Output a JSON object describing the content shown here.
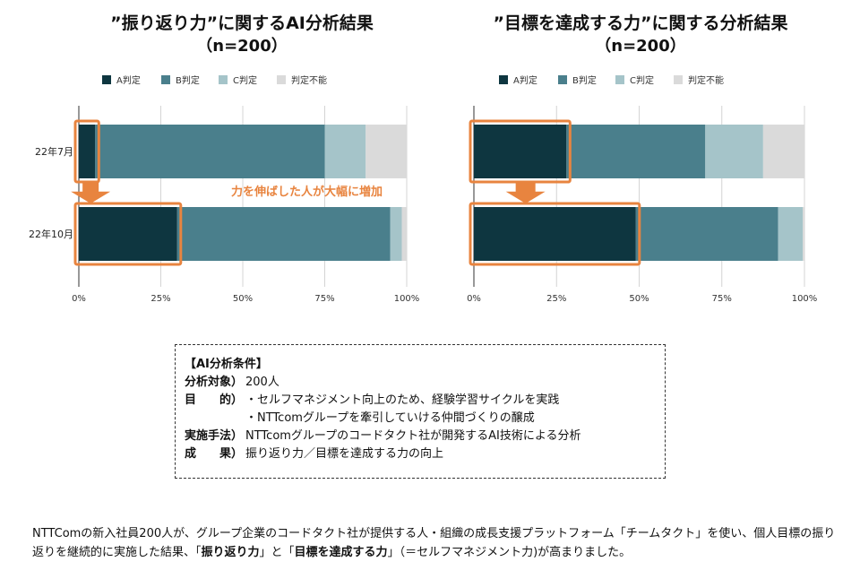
{
  "colors": {
    "A": "#0e3640",
    "B": "#4a7f8c",
    "C": "#a5c4c9",
    "unknown": "#dadada",
    "highlight": "#e8843f",
    "grid": "#d4d4d4"
  },
  "chart_data": [
    {
      "type": "bar",
      "orientation": "horizontal",
      "stacked": true,
      "title": "”振り返り力”に関するAI分析結果",
      "subtitle": "（n=200）",
      "categories": [
        "22年7月",
        "22年10月"
      ],
      "series": [
        {
          "name": "A判定",
          "values": [
            5,
            30
          ]
        },
        {
          "name": "B判定",
          "values": [
            70,
            65
          ]
        },
        {
          "name": "C判定",
          "values": [
            12.5,
            3.5
          ]
        },
        {
          "name": "判定不能",
          "values": [
            12.5,
            1.5
          ]
        }
      ],
      "xlim": [
        0,
        100
      ],
      "xticks": [
        "0%",
        "25%",
        "50%",
        "75%",
        "100%"
      ],
      "grid": true,
      "legend_position": "top",
      "annotation": "力を伸ばした人が大幅に増加"
    },
    {
      "type": "bar",
      "orientation": "horizontal",
      "stacked": true,
      "title": "”目標を達成する力”に関する分析結果",
      "subtitle": "（n=200）",
      "categories": [
        "22年7月",
        "22年10月"
      ],
      "series": [
        {
          "name": "A判定",
          "values": [
            28,
            49
          ]
        },
        {
          "name": "B判定",
          "values": [
            42,
            43
          ]
        },
        {
          "name": "C判定",
          "values": [
            17.5,
            7.5
          ]
        },
        {
          "name": "判定不能",
          "values": [
            12.5,
            0.5
          ]
        }
      ],
      "xlim": [
        0,
        100
      ],
      "xticks": [
        "0%",
        "25%",
        "50%",
        "75%",
        "100%"
      ],
      "grid": true,
      "legend_position": "top"
    }
  ],
  "conditions": {
    "title": "【AI分析条件】",
    "rows": [
      {
        "label": "分析対象）",
        "value": "200人"
      },
      {
        "label": "目　　的）",
        "value": "・セルフマネジメント向上のため、経験学習サイクルを実践"
      },
      {
        "label": "",
        "value": "・NTTcomグループを牽引していける仲間づくりの醸成"
      },
      {
        "label": "実施手法）",
        "value": "NTTcomグループのコードタクト社が開発するAI技術による分析"
      },
      {
        "label": "成　　果）",
        "value": "振り返り力／目標を達成する力の向上"
      }
    ]
  },
  "summary": {
    "part1": "NTTComの新入社員200人が、グループ企業のコードタクト社が提供する人・組織の成長支援プラットフォーム「チームタクト」を使い、個人目標の振り返りを継続的に実施した結果、「",
    "bold1": "振り返り力",
    "part2": "」と「",
    "bold2": "目標を達成する力",
    "part3": "」（＝セルフマネジメント力)が高まりました。"
  }
}
